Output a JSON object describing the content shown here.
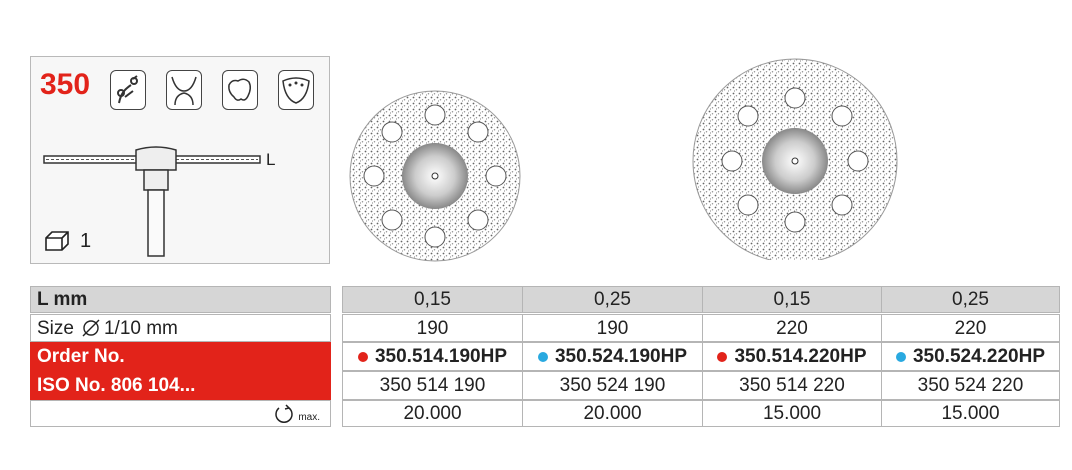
{
  "product": {
    "number": "350",
    "shank_letter": "L",
    "pack_quantity": "1"
  },
  "icons": [
    "dental-pliers-icon",
    "gingiva-icon",
    "tooth-model-icon",
    "denture-icon"
  ],
  "table": {
    "rows": [
      {
        "label": "L mm",
        "values": [
          "0,15",
          "0,25",
          "0,15",
          "0,25"
        ]
      },
      {
        "label_prefix": "Size",
        "label_suffix": "1/10 mm",
        "values": [
          "190",
          "190",
          "220",
          "220"
        ]
      },
      {
        "label": "Order No.",
        "values": [
          "350.514.190HP",
          "350.524.190HP",
          "350.514.220HP",
          "350.524.220HP"
        ],
        "dot_colors": [
          "#e2231a",
          "#29a9e0",
          "#e2231a",
          "#29a9e0"
        ]
      },
      {
        "label": "ISO No. 806 104...",
        "values": [
          "350 514 190",
          "350 524 190",
          "350 514 220",
          "350 524 220"
        ]
      },
      {
        "label_suffix": "max.",
        "values": [
          "20.000",
          "20.000",
          "15.000",
          "15.000"
        ]
      }
    ]
  },
  "colors": {
    "accent_red": "#e2231a",
    "header_grey": "#d6d6d6"
  }
}
